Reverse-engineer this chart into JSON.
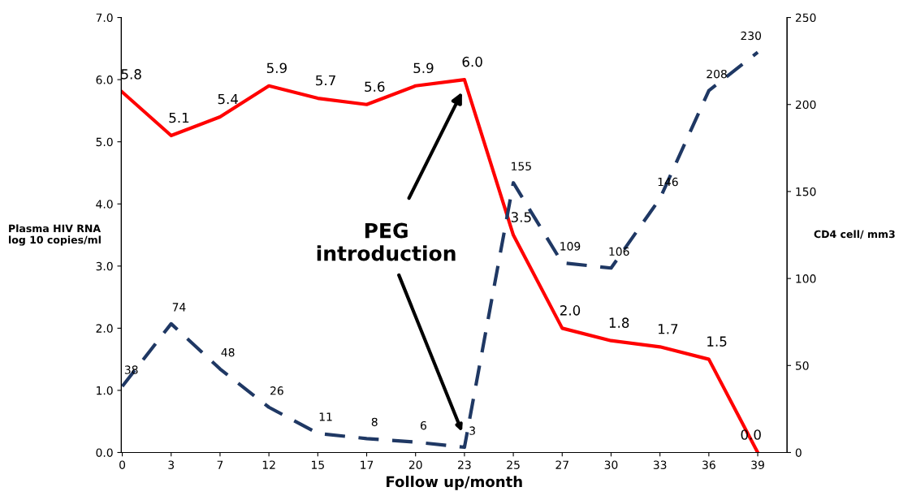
{
  "chart_data": {
    "type": "line",
    "xlabel": "Follow up/month",
    "ylabel": "Plasma HIV RNA\nlog 10 copies/ml",
    "y2label": "CD4 cell/ mm3",
    "categories": [
      "0",
      "3",
      "7",
      "12",
      "15",
      "17",
      "20",
      "23",
      "25",
      "27",
      "30",
      "33",
      "36",
      "39"
    ],
    "series": [
      {
        "color": "#ff0000",
        "line_style": "solid",
        "values": [
          5.8,
          5.1,
          5.4,
          5.9,
          5.7,
          5.6,
          5.9,
          6.0,
          3.5,
          2.0,
          1.8,
          1.7,
          1.5,
          0.0
        ],
        "value_labels": [
          "5.8",
          "5.1",
          "5.4",
          "5.9",
          "5.7",
          "5.6",
          "5.9",
          "6.0",
          "3.5",
          "2.0",
          "1.8",
          "1.7",
          "1.5",
          "0.0"
        ]
      },
      {
        "color": "#1f3864",
        "line_style": "dashed",
        "axis": "y2",
        "values": [
          38,
          74,
          48,
          26,
          11,
          8,
          6,
          3,
          155,
          109,
          106,
          146,
          208,
          230
        ],
        "value_labels": [
          "38",
          "74",
          "48",
          "26",
          "11",
          "8",
          "6",
          "3",
          "155",
          "109",
          "106",
          "146",
          "208",
          "230"
        ]
      }
    ],
    "ylim": [
      0,
      7
    ],
    "yticks": [
      {
        "value": 0,
        "label": "0.0"
      },
      {
        "value": 1,
        "label": "1.0"
      },
      {
        "value": 2,
        "label": "2.0"
      },
      {
        "value": 3,
        "label": "3.0"
      },
      {
        "value": 4,
        "label": "4.0"
      },
      {
        "value": 5,
        "label": "5.0"
      },
      {
        "value": 6,
        "label": "6.0"
      },
      {
        "value": 7,
        "label": "7.0"
      }
    ],
    "y2lim": [
      0,
      250
    ],
    "y2ticks": [
      0,
      50,
      100,
      150,
      200,
      250
    ],
    "annotations": [
      "PEG\nintroduction"
    ],
    "grid": false,
    "marker": "none"
  }
}
